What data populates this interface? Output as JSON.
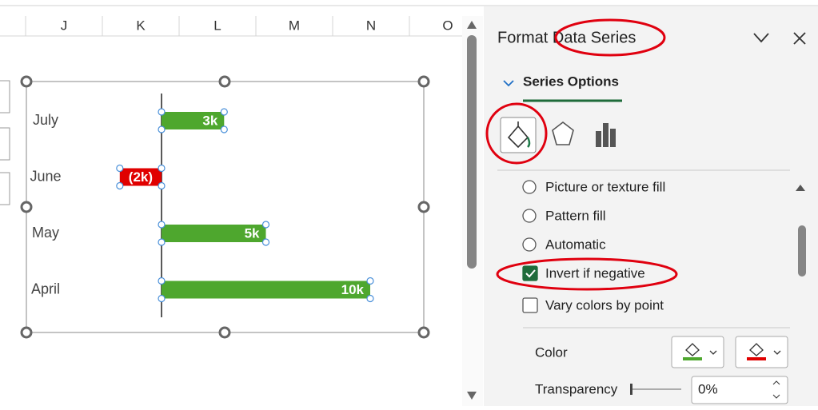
{
  "sheet": {
    "columns": [
      "J",
      "K",
      "L",
      "M",
      "N",
      "O"
    ]
  },
  "chart_data": {
    "type": "bar",
    "orientation": "horizontal",
    "categories": [
      "July",
      "June",
      "May",
      "April"
    ],
    "values": [
      3000,
      -2000,
      5000,
      10000
    ],
    "value_labels": [
      "3k",
      "(2k)",
      "5k",
      "10k"
    ],
    "color": "#4ea72e",
    "invert_color": "#e00000"
  },
  "panel": {
    "title": "Format Data Series",
    "section": "Series Options",
    "options": [
      {
        "label": "Picture or texture fill",
        "control": "radio",
        "checked": false
      },
      {
        "label": "Pattern fill",
        "control": "radio",
        "checked": false
      },
      {
        "label": "Automatic",
        "control": "radio",
        "checked": false
      },
      {
        "label": "Invert if negative",
        "control": "checkbox",
        "checked": true
      },
      {
        "label": "Vary colors by point",
        "control": "checkbox",
        "checked": false
      }
    ],
    "color_label": "Color",
    "transparency_label": "Transparency",
    "transparency_value": "0%"
  }
}
